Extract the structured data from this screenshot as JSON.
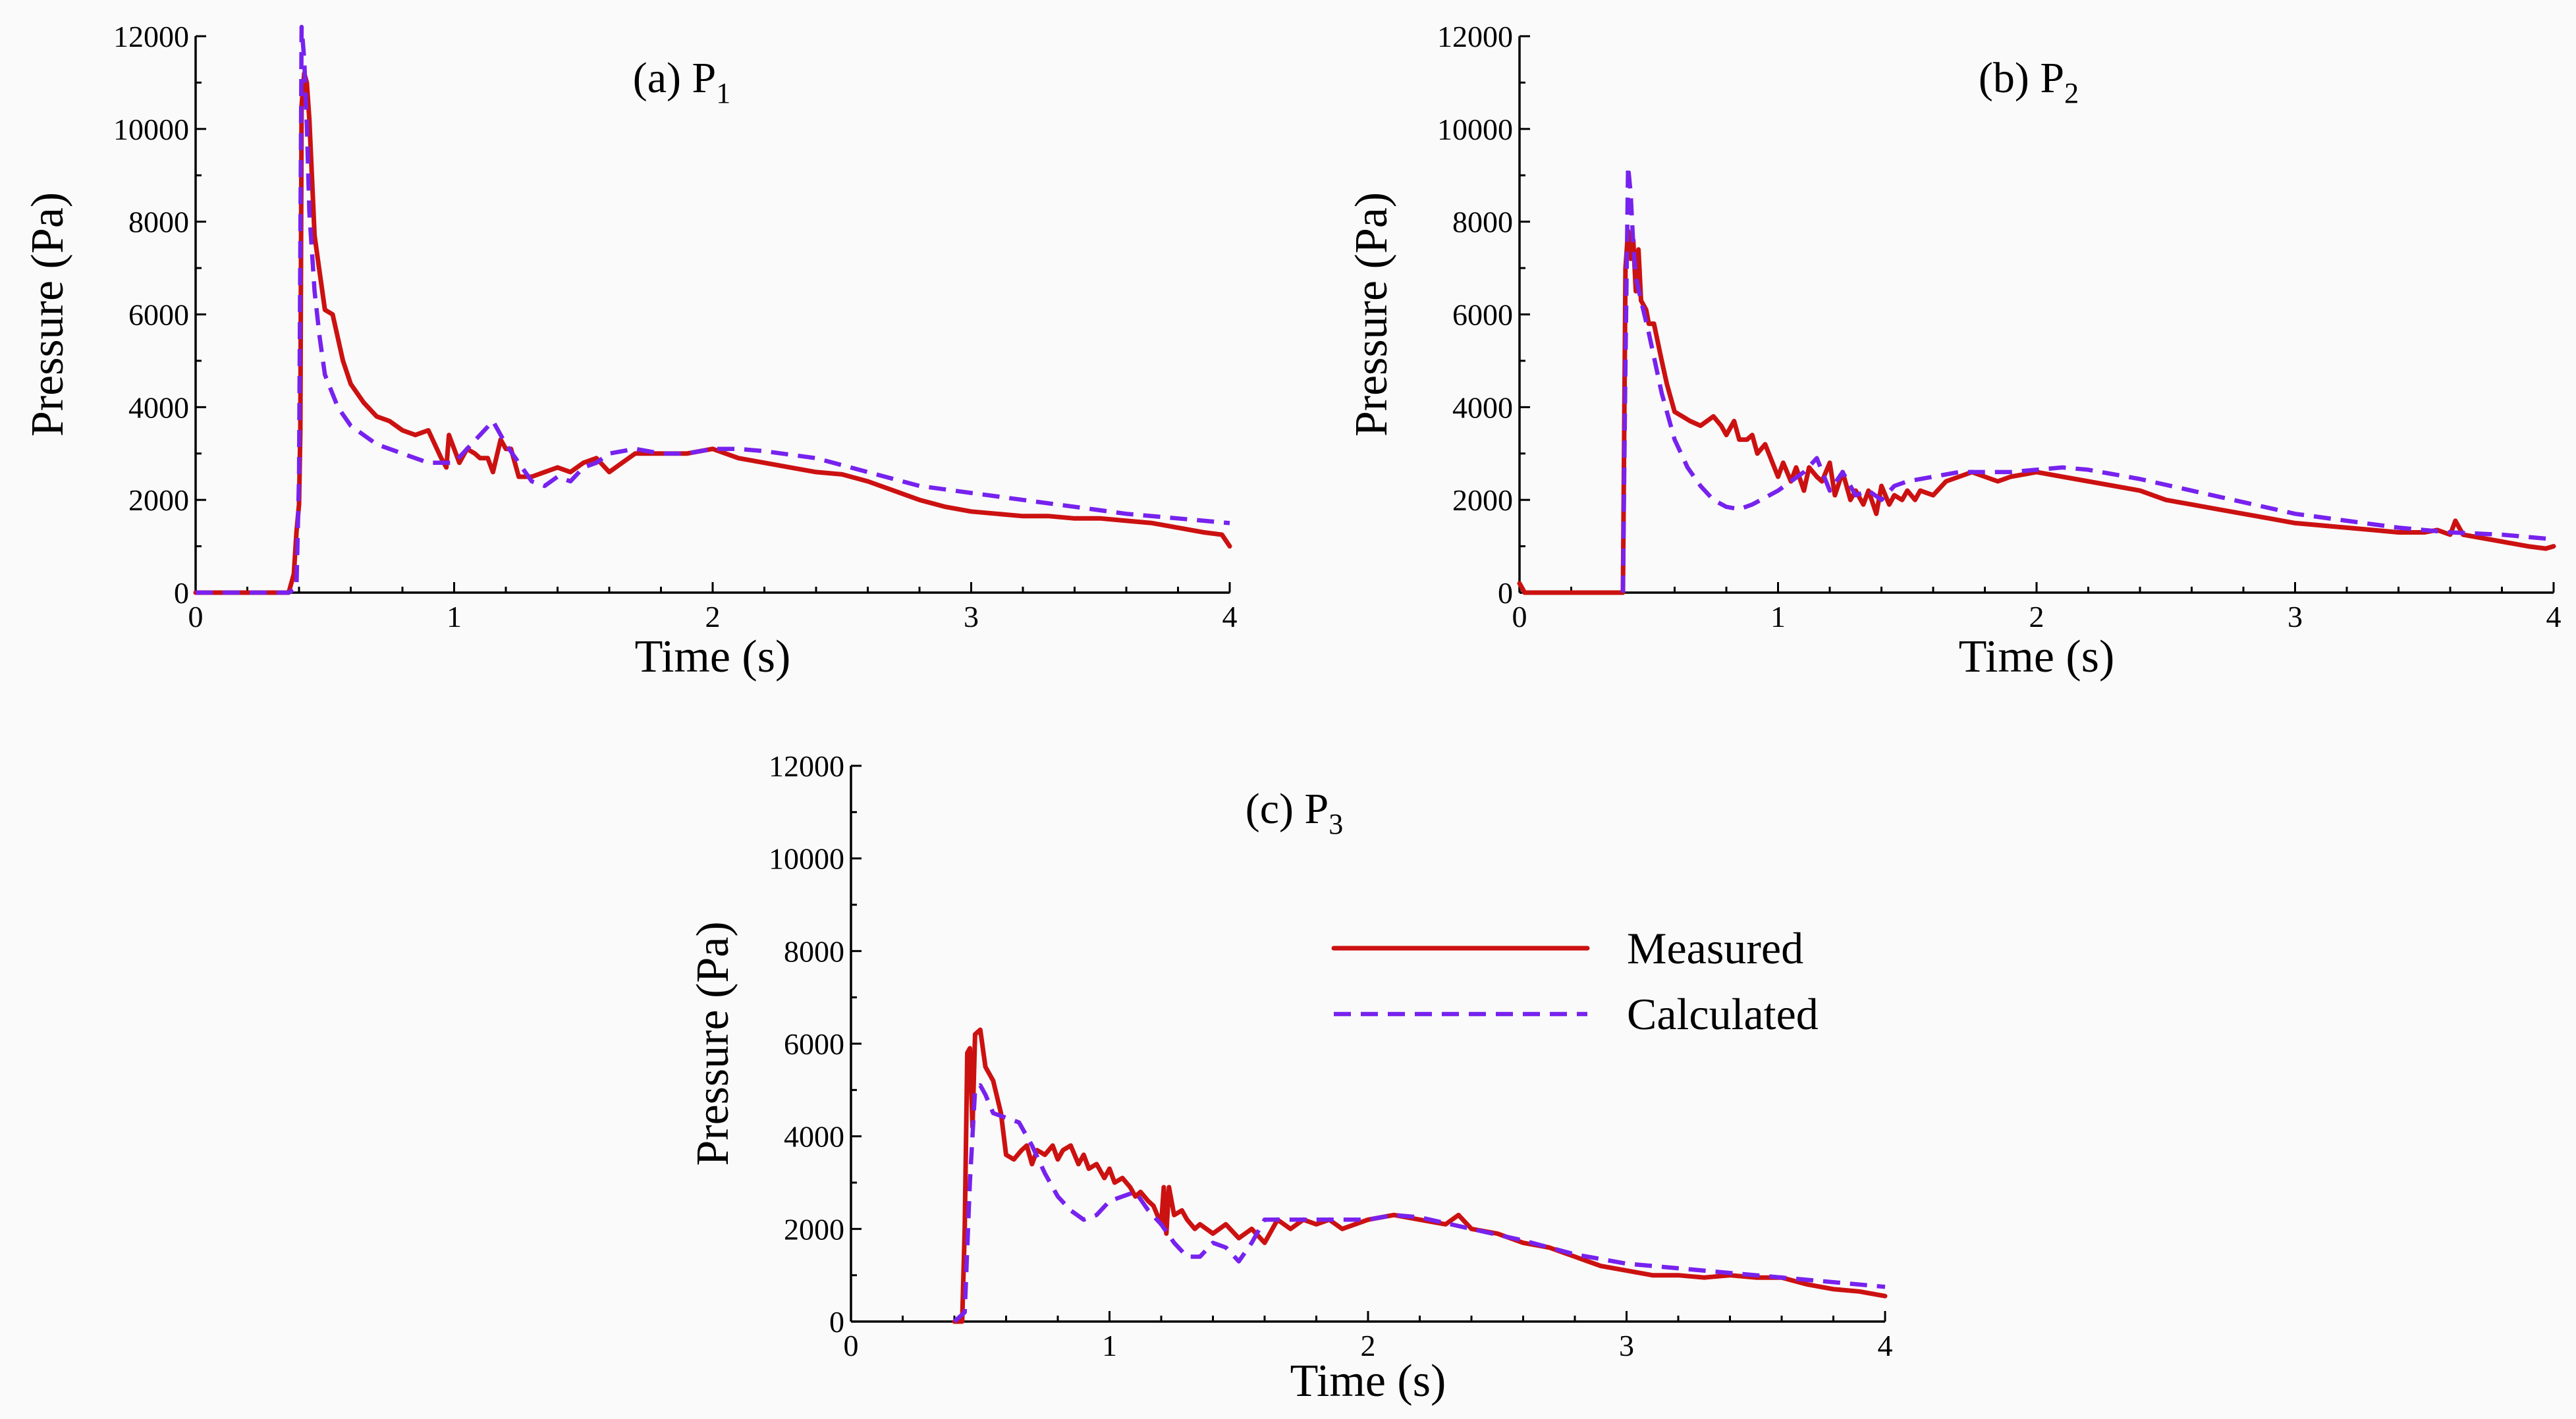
{
  "legend": {
    "measured": "Measured",
    "calculated": "Calculated"
  },
  "colors": {
    "measured": "#cc1111",
    "calculated": "#7722ee"
  },
  "chart_data": [
    {
      "type": "line",
      "title": "(a) P",
      "title_sub": "1",
      "xlabel": "Time (s)",
      "ylabel": "Pressure (Pa)",
      "xlim": [
        0,
        4
      ],
      "ylim": [
        0,
        12000
      ],
      "xticks": [
        0,
        1,
        2,
        3,
        4
      ],
      "yticks": [
        0,
        2000,
        4000,
        6000,
        8000,
        10000,
        12000
      ],
      "series": [
        {
          "name": "Measured",
          "x": [
            0,
            0.36,
            0.38,
            0.39,
            0.4,
            0.405,
            0.41,
            0.42,
            0.43,
            0.44,
            0.46,
            0.48,
            0.5,
            0.53,
            0.57,
            0.6,
            0.65,
            0.7,
            0.75,
            0.8,
            0.85,
            0.9,
            0.95,
            0.97,
            0.98,
            1.0,
            1.02,
            1.05,
            1.08,
            1.1,
            1.13,
            1.15,
            1.18,
            1.2,
            1.22,
            1.25,
            1.3,
            1.35,
            1.4,
            1.45,
            1.5,
            1.55,
            1.6,
            1.65,
            1.7,
            1.8,
            1.9,
            2.0,
            2.1,
            2.2,
            2.3,
            2.4,
            2.5,
            2.6,
            2.7,
            2.8,
            2.9,
            3.0,
            3.1,
            3.2,
            3.3,
            3.4,
            3.5,
            3.6,
            3.7,
            3.8,
            3.9,
            3.97,
            4.0
          ],
          "y": [
            0,
            0,
            400,
            1300,
            1900,
            3500,
            10500,
            11200,
            11000,
            10200,
            7700,
            6900,
            6100,
            6000,
            5000,
            4500,
            4100,
            3800,
            3700,
            3500,
            3400,
            3500,
            2900,
            2700,
            3400,
            3100,
            2800,
            3100,
            3000,
            2900,
            2900,
            2600,
            3300,
            3100,
            3100,
            2500,
            2500,
            2600,
            2700,
            2600,
            2800,
            2900,
            2600,
            2800,
            3000,
            3000,
            3000,
            3100,
            2900,
            2800,
            2700,
            2600,
            2550,
            2400,
            2200,
            2000,
            1850,
            1750,
            1700,
            1650,
            1650,
            1600,
            1600,
            1550,
            1500,
            1400,
            1300,
            1250,
            1000
          ]
        },
        {
          "name": "Calculated",
          "x": [
            0,
            0.36,
            0.39,
            0.4,
            0.41,
            0.42,
            0.43,
            0.44,
            0.46,
            0.48,
            0.5,
            0.55,
            0.6,
            0.65,
            0.7,
            0.8,
            0.9,
            1.0,
            1.05,
            1.1,
            1.15,
            1.2,
            1.25,
            1.3,
            1.35,
            1.4,
            1.45,
            1.5,
            1.55,
            1.6,
            1.7,
            1.8,
            1.9,
            2.0,
            2.1,
            2.2,
            2.4,
            2.6,
            2.8,
            3.0,
            3.2,
            3.4,
            3.6,
            3.8,
            4.0
          ],
          "y": [
            0,
            0,
            100,
            2500,
            12200,
            11500,
            10100,
            8200,
            6500,
            5500,
            4700,
            4000,
            3600,
            3400,
            3200,
            3000,
            2800,
            2800,
            3100,
            3400,
            3700,
            3200,
            2800,
            2400,
            2300,
            2500,
            2400,
            2700,
            2800,
            3000,
            3100,
            3000,
            3000,
            3100,
            3100,
            3050,
            2900,
            2600,
            2300,
            2150,
            2000,
            1850,
            1700,
            1600,
            1500
          ]
        }
      ]
    },
    {
      "type": "line",
      "title": "(b) P",
      "title_sub": "2",
      "xlabel": "Time (s)",
      "ylabel": "Pressure (Pa)",
      "xlim": [
        0,
        4
      ],
      "ylim": [
        0,
        12000
      ],
      "xticks": [
        0,
        1,
        2,
        3,
        4
      ],
      "yticks": [
        0,
        2000,
        4000,
        6000,
        8000,
        10000,
        12000
      ],
      "series": [
        {
          "name": "Measured",
          "x": [
            0,
            0.02,
            0.4,
            0.41,
            0.42,
            0.43,
            0.44,
            0.45,
            0.46,
            0.47,
            0.48,
            0.49,
            0.5,
            0.52,
            0.55,
            0.57,
            0.6,
            0.63,
            0.66,
            0.7,
            0.75,
            0.78,
            0.8,
            0.83,
            0.85,
            0.88,
            0.9,
            0.92,
            0.95,
            1.0,
            1.02,
            1.05,
            1.07,
            1.1,
            1.12,
            1.15,
            1.17,
            1.2,
            1.22,
            1.25,
            1.28,
            1.3,
            1.33,
            1.35,
            1.38,
            1.4,
            1.43,
            1.45,
            1.48,
            1.5,
            1.53,
            1.55,
            1.6,
            1.65,
            1.7,
            1.75,
            1.8,
            1.85,
            1.9,
            2.0,
            2.1,
            2.2,
            2.3,
            2.4,
            2.5,
            2.6,
            2.7,
            2.8,
            2.9,
            3.0,
            3.1,
            3.2,
            3.3,
            3.4,
            3.5,
            3.55,
            3.6,
            3.62,
            3.65,
            3.7,
            3.8,
            3.9,
            3.97,
            4.0
          ],
          "y": [
            200,
            0,
            0,
            7000,
            7800,
            7200,
            7600,
            6500,
            7400,
            6300,
            6200,
            6100,
            5800,
            5800,
            5000,
            4500,
            3900,
            3800,
            3700,
            3600,
            3800,
            3600,
            3400,
            3700,
            3300,
            3300,
            3400,
            3000,
            3200,
            2500,
            2800,
            2400,
            2700,
            2200,
            2700,
            2500,
            2400,
            2800,
            2100,
            2600,
            2000,
            2200,
            1900,
            2200,
            1700,
            2300,
            1900,
            2100,
            2000,
            2200,
            2000,
            2200,
            2100,
            2400,
            2500,
            2600,
            2500,
            2400,
            2500,
            2600,
            2500,
            2400,
            2300,
            2200,
            2000,
            1900,
            1800,
            1700,
            1600,
            1500,
            1450,
            1400,
            1350,
            1300,
            1300,
            1350,
            1250,
            1550,
            1250,
            1200,
            1100,
            1000,
            950,
            1000
          ]
        },
        {
          "name": "Calculated",
          "x": [
            0.4,
            0.41,
            0.42,
            0.43,
            0.44,
            0.45,
            0.47,
            0.5,
            0.55,
            0.6,
            0.65,
            0.7,
            0.75,
            0.8,
            0.85,
            0.9,
            1.0,
            1.1,
            1.15,
            1.2,
            1.25,
            1.3,
            1.35,
            1.4,
            1.45,
            1.5,
            1.6,
            1.7,
            1.8,
            1.9,
            2.0,
            2.1,
            2.2,
            2.4,
            2.6,
            2.8,
            3.0,
            3.2,
            3.4,
            3.6,
            3.8,
            4.0
          ],
          "y": [
            0,
            5000,
            9200,
            8600,
            7500,
            6800,
            6300,
            5600,
            4300,
            3300,
            2700,
            2300,
            2000,
            1850,
            1800,
            1900,
            2200,
            2600,
            2900,
            2200,
            2600,
            2100,
            2200,
            2000,
            2300,
            2400,
            2500,
            2600,
            2600,
            2600,
            2650,
            2700,
            2650,
            2450,
            2200,
            1950,
            1700,
            1550,
            1400,
            1300,
            1250,
            1150
          ]
        }
      ]
    },
    {
      "type": "line",
      "title": "(c) P",
      "title_sub": "3",
      "xlabel": "Time (s)",
      "ylabel": "Pressure (Pa)",
      "xlim": [
        0,
        4
      ],
      "ylim": [
        0,
        12000
      ],
      "xticks": [
        0,
        1,
        2,
        3,
        4
      ],
      "yticks": [
        0,
        2000,
        4000,
        6000,
        8000,
        10000,
        12000
      ],
      "series": [
        {
          "name": "Measured",
          "x": [
            0.4,
            0.43,
            0.44,
            0.45,
            0.46,
            0.47,
            0.48,
            0.5,
            0.52,
            0.55,
            0.58,
            0.6,
            0.63,
            0.66,
            0.68,
            0.7,
            0.72,
            0.75,
            0.78,
            0.8,
            0.82,
            0.85,
            0.88,
            0.9,
            0.92,
            0.95,
            0.98,
            1.0,
            1.02,
            1.05,
            1.08,
            1.1,
            1.12,
            1.15,
            1.17,
            1.2,
            1.21,
            1.22,
            1.23,
            1.25,
            1.28,
            1.3,
            1.33,
            1.35,
            1.4,
            1.45,
            1.5,
            1.55,
            1.6,
            1.65,
            1.7,
            1.75,
            1.8,
            1.85,
            1.9,
            1.95,
            2.0,
            2.1,
            2.2,
            2.3,
            2.35,
            2.4,
            2.5,
            2.6,
            2.7,
            2.8,
            2.9,
            3.0,
            3.1,
            3.2,
            3.3,
            3.4,
            3.5,
            3.6,
            3.7,
            3.8,
            3.9,
            4.0
          ],
          "y": [
            0,
            0,
            2000,
            5800,
            5900,
            4200,
            6200,
            6300,
            5500,
            5200,
            4500,
            3600,
            3500,
            3700,
            3800,
            3400,
            3700,
            3600,
            3800,
            3500,
            3700,
            3800,
            3400,
            3600,
            3300,
            3400,
            3100,
            3300,
            3000,
            3100,
            2900,
            2700,
            2800,
            2600,
            2500,
            2100,
            2900,
            1900,
            2900,
            2300,
            2400,
            2200,
            2000,
            2100,
            1900,
            2100,
            1800,
            2000,
            1700,
            2200,
            2000,
            2200,
            2100,
            2200,
            2000,
            2100,
            2200,
            2300,
            2200,
            2100,
            2300,
            2000,
            1900,
            1700,
            1600,
            1400,
            1200,
            1100,
            1000,
            1000,
            950,
            1000,
            950,
            950,
            800,
            700,
            650,
            550
          ]
        },
        {
          "name": "Calculated",
          "x": [
            0.4,
            0.44,
            0.46,
            0.48,
            0.5,
            0.52,
            0.55,
            0.6,
            0.65,
            0.7,
            0.75,
            0.8,
            0.85,
            0.9,
            0.95,
            1.0,
            1.05,
            1.1,
            1.15,
            1.2,
            1.25,
            1.3,
            1.35,
            1.4,
            1.45,
            1.5,
            1.55,
            1.6,
            1.7,
            1.8,
            1.9,
            2.0,
            2.1,
            2.2,
            2.4,
            2.6,
            2.8,
            3.0,
            3.2,
            3.4,
            3.6,
            3.8,
            4.0
          ],
          "y": [
            0,
            200,
            3000,
            5000,
            5100,
            4900,
            4500,
            4400,
            4300,
            3800,
            3200,
            2700,
            2400,
            2200,
            2300,
            2600,
            2700,
            2800,
            2400,
            2100,
            1700,
            1400,
            1400,
            1700,
            1600,
            1300,
            1700,
            2200,
            2200,
            2200,
            2200,
            2200,
            2300,
            2250,
            2000,
            1750,
            1450,
            1250,
            1150,
            1050,
            950,
            850,
            750
          ]
        }
      ]
    }
  ]
}
